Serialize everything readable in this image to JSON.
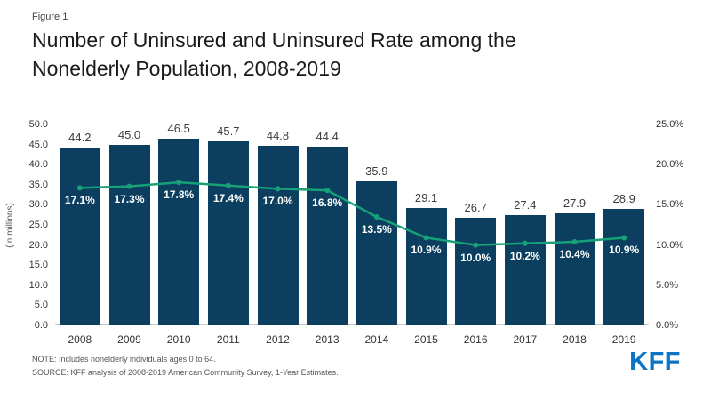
{
  "header": {
    "figure_label": "Figure 1",
    "title_line1": "Number of Uninsured and Uninsured Rate among the",
    "title_line2": "Nonelderly Population, 2008-2019"
  },
  "footer": {
    "note": "NOTE: Includes nonelderly individuals ages 0 to 64.",
    "source": "SOURCE: KFF analysis of 2008-2019 American Community Survey, 1-Year Estimates.",
    "logo_text": "KFF"
  },
  "colors": {
    "bar": "#0b3e5f",
    "line": "#17a178",
    "logo": "#0c74c4",
    "value_label": "#3c3c3c",
    "rate_label": "#ffffff"
  },
  "chart_data": {
    "type": "bar",
    "categories": [
      "2008",
      "2009",
      "2010",
      "2011",
      "2012",
      "2013",
      "2014",
      "2015",
      "2016",
      "2017",
      "2018",
      "2019"
    ],
    "series": [
      {
        "name": "Number of Uninsured",
        "type": "bar",
        "values": [
          44.2,
          45.0,
          46.5,
          45.7,
          44.8,
          44.4,
          35.9,
          29.1,
          26.7,
          27.4,
          27.9,
          28.9
        ]
      },
      {
        "name": "Uninsured Rate",
        "type": "line",
        "values": [
          17.1,
          17.3,
          17.8,
          17.4,
          17.0,
          16.8,
          13.5,
          10.9,
          10.0,
          10.2,
          10.4,
          10.9
        ]
      }
    ],
    "left_axis": {
      "label": "(in millions)",
      "min": 0,
      "max": 50,
      "step": 5
    },
    "right_axis": {
      "min": 0,
      "max": 25,
      "step": 5,
      "suffix": "%"
    },
    "grid": false,
    "legend": "none"
  }
}
